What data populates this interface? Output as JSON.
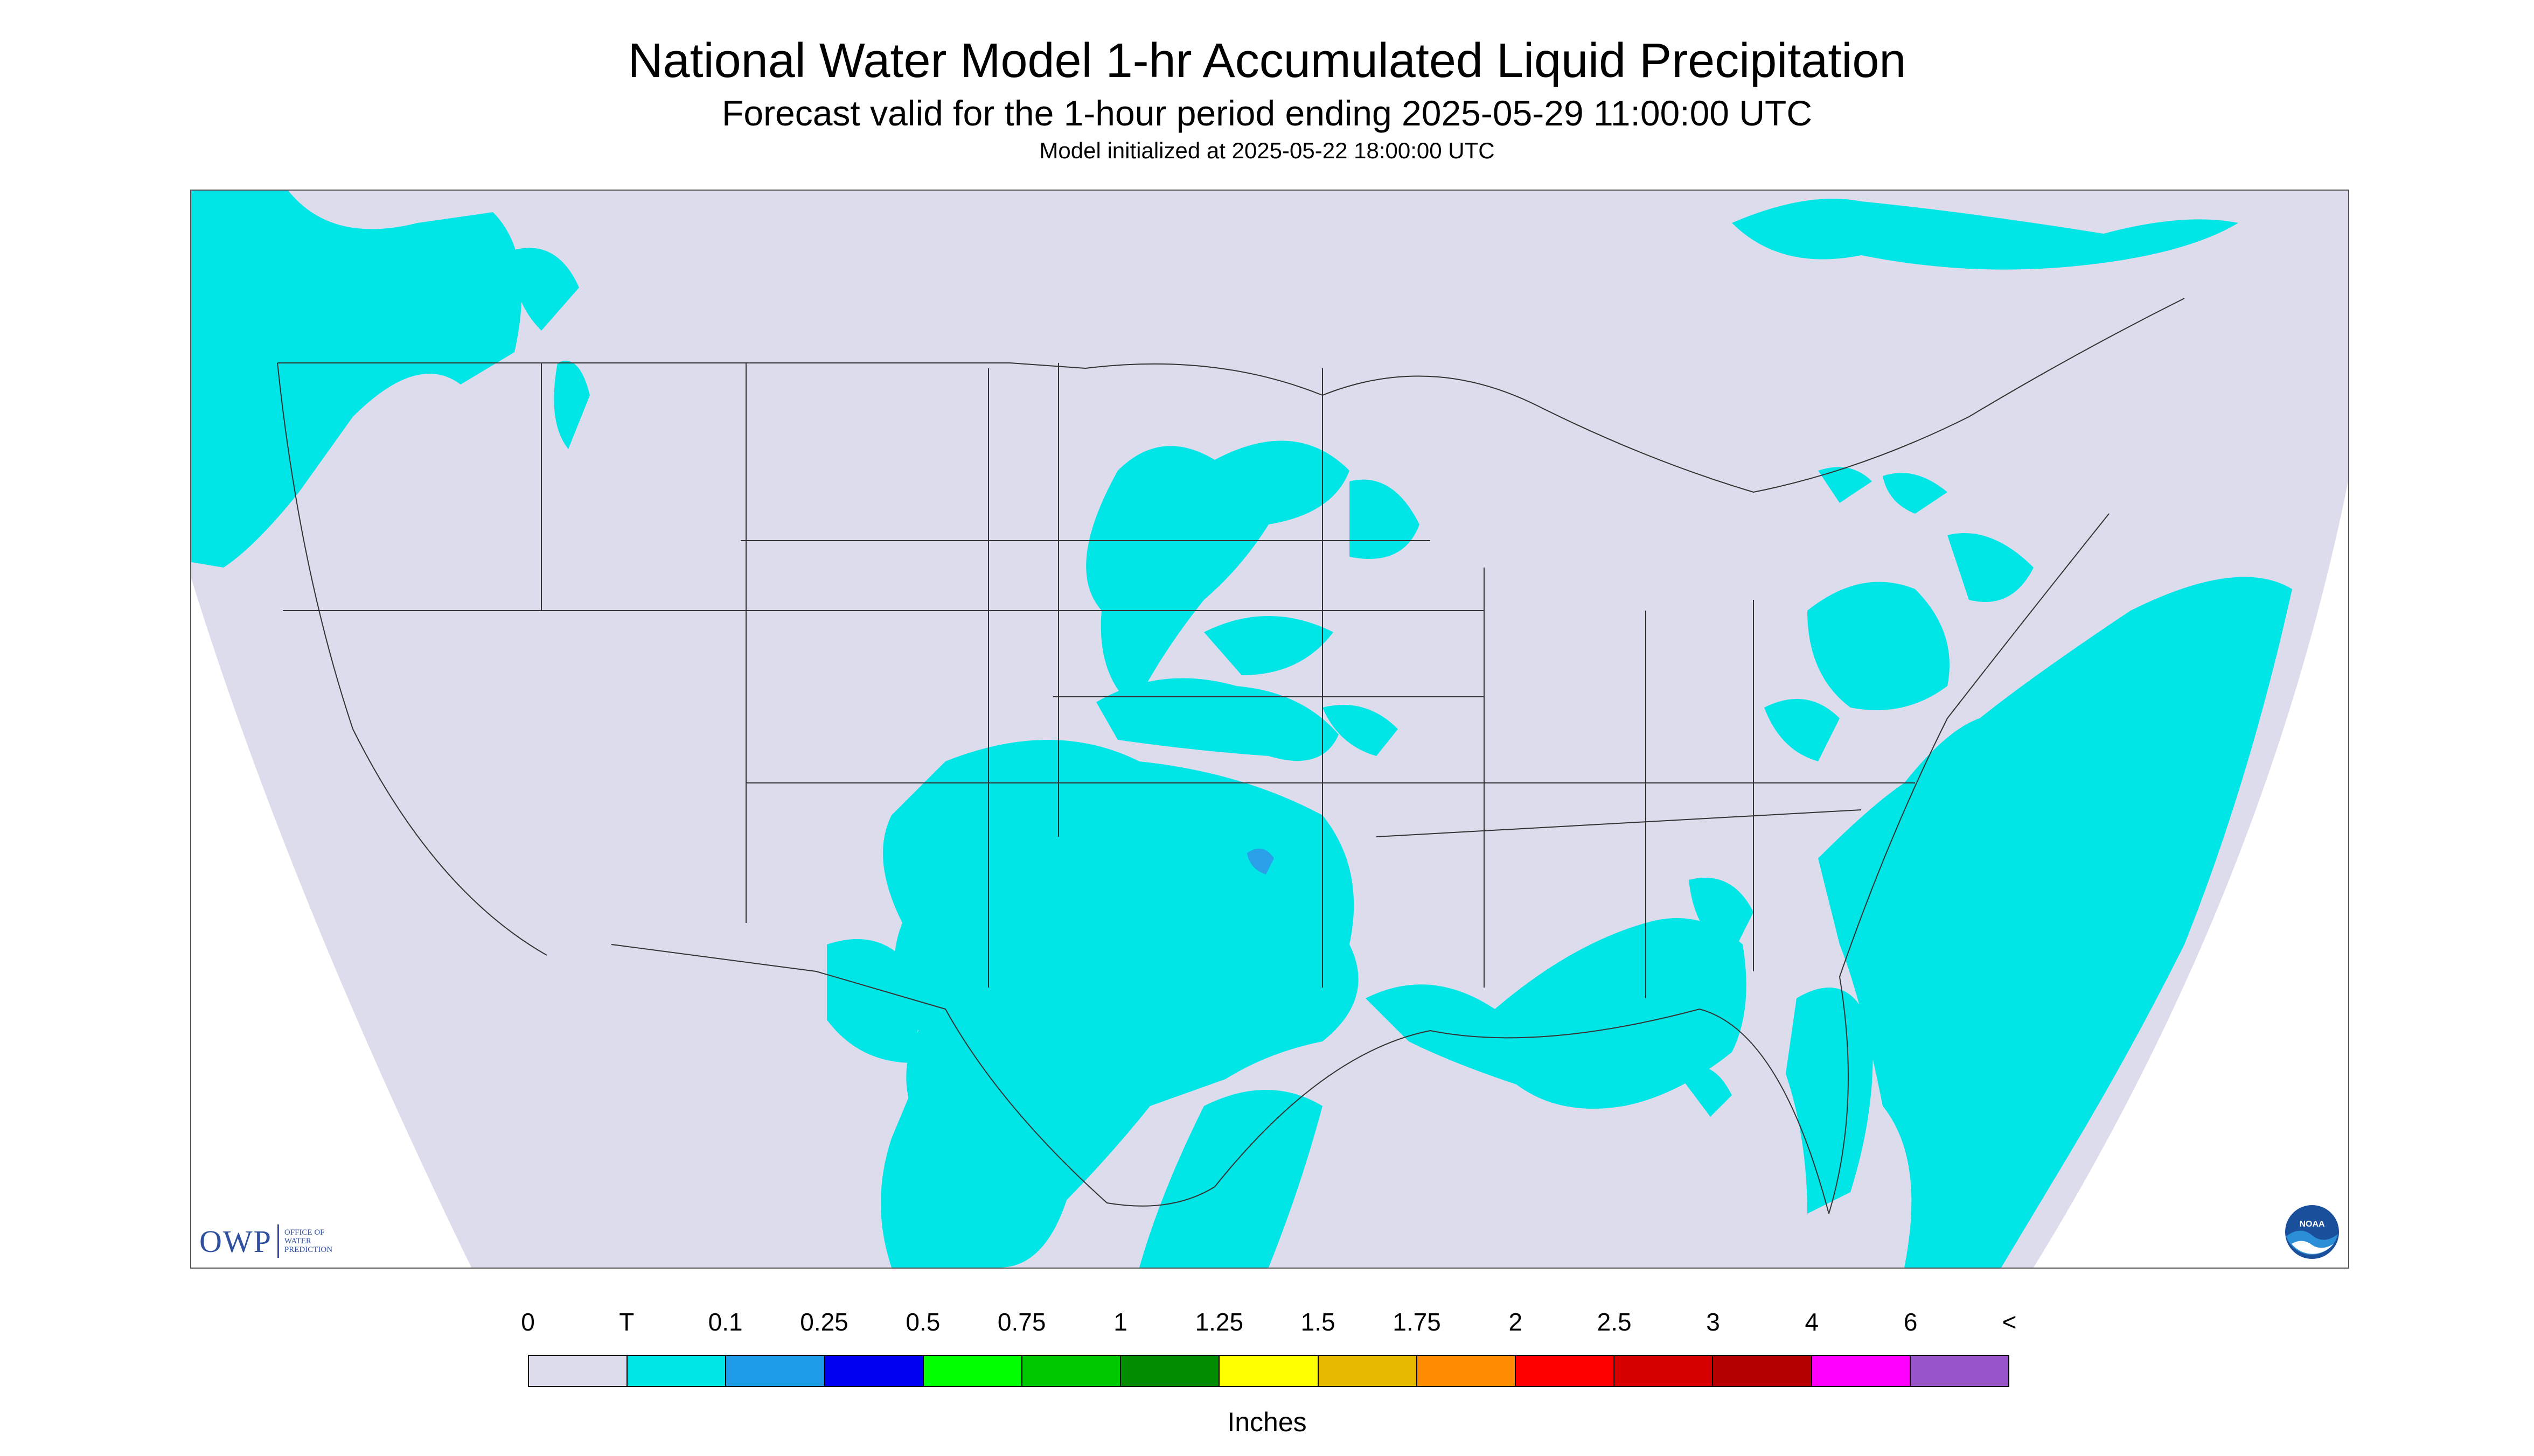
{
  "header": {
    "title": "National Water Model 1-hr Accumulated Liquid Precipitation",
    "subtitle": "Forecast valid for the 1-hour period ending 2025-05-29 11:00:00 UTC",
    "init_line": "Model initialized at 2025-05-22 18:00:00 UTC"
  },
  "map": {
    "background_color": "#dcdcec",
    "outside_color": "#ffffff",
    "trace_color": "#00e5e5",
    "light_blue_color": "#2aa0e8",
    "boundary_color": "#333333"
  },
  "logos": {
    "owp_text": "OWP",
    "owp_subtext": [
      "OFFICE OF",
      "WATER",
      "PREDICTION"
    ],
    "noaa_text": "NOAA"
  },
  "legend": {
    "ticks": [
      "0",
      "T",
      "0.1",
      "0.25",
      "0.5",
      "0.75",
      "1",
      "1.25",
      "1.5",
      "1.75",
      "2",
      "2.5",
      "3",
      "4",
      "6",
      "<"
    ],
    "colors": [
      "#dcdcec",
      "#00e5e5",
      "#1e9be8",
      "#0000f0",
      "#00ff00",
      "#00c800",
      "#008c00",
      "#ffff00",
      "#e6b800",
      "#ff8c00",
      "#ff0000",
      "#d70000",
      "#b40000",
      "#ff00ff",
      "#9955cc"
    ],
    "units": "Inches"
  }
}
